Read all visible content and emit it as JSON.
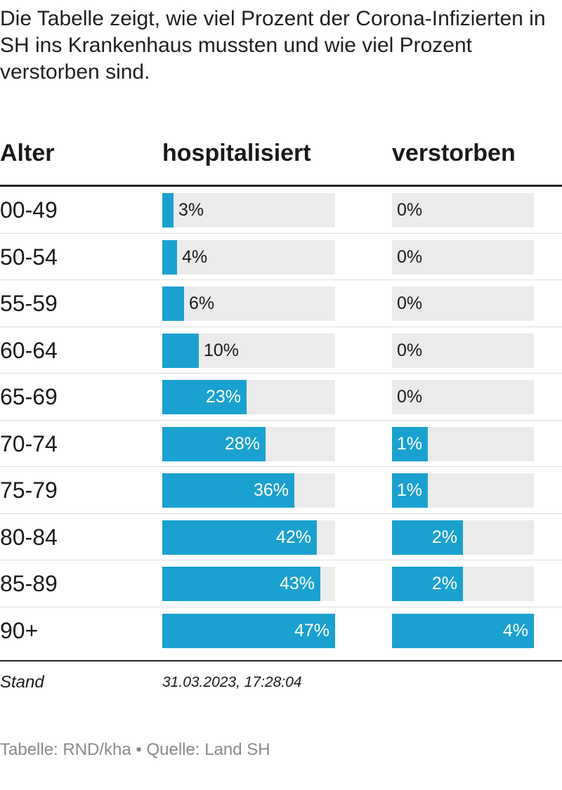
{
  "intro": "Die Tabelle zeigt, wie viel Prozent der Corona-Infizierten in SH ins Krankenhaus mussten und wie viel Prozent verstorben sind.",
  "columns": {
    "age": "Alter",
    "hospitalized": "hospitalisiert",
    "died": "verstorben"
  },
  "colors": {
    "bar": "#1ba1cf",
    "track": "#ebebeb"
  },
  "chart_data": {
    "type": "table",
    "columns": [
      "Alter",
      "hospitalisiert",
      "verstorben"
    ],
    "rows": [
      {
        "age": "00-49",
        "hosp": 3,
        "hosp_label": "3%",
        "dead": 0,
        "dead_label": "0%"
      },
      {
        "age": "50-54",
        "hosp": 4,
        "hosp_label": "4%",
        "dead": 0,
        "dead_label": "0%"
      },
      {
        "age": "55-59",
        "hosp": 6,
        "hosp_label": "6%",
        "dead": 0,
        "dead_label": "0%"
      },
      {
        "age": "60-64",
        "hosp": 10,
        "hosp_label": "10%",
        "dead": 0,
        "dead_label": "0%"
      },
      {
        "age": "65-69",
        "hosp": 23,
        "hosp_label": "23%",
        "dead": 0,
        "dead_label": "0%"
      },
      {
        "age": "70-74",
        "hosp": 28,
        "hosp_label": "28%",
        "dead": 1,
        "dead_label": "1%"
      },
      {
        "age": "75-79",
        "hosp": 36,
        "hosp_label": "36%",
        "dead": 1,
        "dead_label": "1%"
      },
      {
        "age": "80-84",
        "hosp": 42,
        "hosp_label": "42%",
        "dead": 2,
        "dead_label": "2%"
      },
      {
        "age": "85-89",
        "hosp": 43,
        "hosp_label": "43%",
        "dead": 2,
        "dead_label": "2%"
      },
      {
        "age": "90+",
        "hosp": 47,
        "hosp_label": "47%",
        "dead": 4,
        "dead_label": "4%"
      }
    ],
    "hosp_max": 47,
    "dead_max": 4
  },
  "footer_row": {
    "label": "Stand",
    "value": "31.03.2023, 17:28:04"
  },
  "credit": "Tabelle: RND/kha • Quelle: Land SH"
}
